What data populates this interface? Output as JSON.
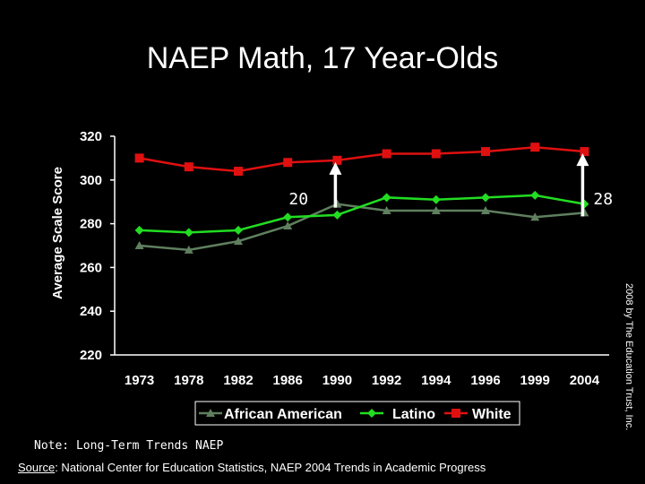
{
  "title": "NAEP Math, 17 Year-Olds",
  "note": "Note: Long-Term Trends NAEP",
  "source": {
    "label": "Source",
    "text": ": National Center for Education Statistics, NAEP 2004 Trends in Academic Progress"
  },
  "credit": "2008 by The Education Trust, Inc.",
  "colors": {
    "african_american": "#5f7f5f",
    "latino": "#22dd22",
    "white": "#e01010",
    "background": "#000000"
  },
  "chart_data": {
    "type": "line",
    "title": "NAEP Math, 17 Year-Olds",
    "xlabel": "",
    "ylabel": "Average Scale Score",
    "ylim": [
      220,
      320
    ],
    "yticks": [
      220,
      240,
      260,
      280,
      300,
      320
    ],
    "categories": [
      "1973",
      "1978",
      "1982",
      "1986",
      "1990",
      "1992",
      "1994",
      "1996",
      "1999",
      "2004"
    ],
    "legend_position": "bottom",
    "grid": false,
    "series": [
      {
        "name": "African American",
        "marker": "triangle",
        "values": [
          270,
          268,
          272,
          279,
          289,
          286,
          286,
          286,
          283,
          285
        ]
      },
      {
        "name": "Latino",
        "marker": "diamond",
        "values": [
          277,
          276,
          277,
          283,
          284,
          292,
          291,
          292,
          293,
          289
        ]
      },
      {
        "name": "White",
        "marker": "square",
        "values": [
          310,
          306,
          304,
          308,
          309,
          312,
          312,
          313,
          315,
          313
        ]
      }
    ],
    "annotations": [
      {
        "text": "20",
        "category": "1990",
        "from": 289,
        "to": 309
      },
      {
        "text": "28",
        "category": "2004",
        "from": 285,
        "to": 313
      }
    ]
  }
}
